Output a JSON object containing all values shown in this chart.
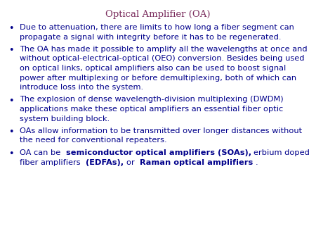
{
  "title": "Optical Amplifier (OA)",
  "title_color": "#7B2D5E",
  "title_fontsize": 9.5,
  "text_color": "#00008B",
  "bg_color": "#FFFFFF",
  "bullet_fontsize": 8.2,
  "bullet_symbol": "•",
  "bullets": [
    {
      "text": "Due to attenuation, there are limits to how long a fiber segment  can propagate a signal with integrity before it has to be regenerated.",
      "parts": null
    },
    {
      "text": "The OA has made it possible to amplify all the wavelengths at once and without optical-electrical-optical (OEO) conversion.  Besides being used on optical links, optical amplifiers also can be used to boost signal power after multiplexing or before demultiplexing, both of which can introduce loss into the system.",
      "parts": null
    },
    {
      "text": "The explosion of dense wavelength-division multiplexing (DWDM) applications make these optical amplifiers an essential fiber optic system building block.",
      "parts": null
    },
    {
      "text": "OAs allow information to be transmitted over longer distances without the need for conventional repeaters.",
      "parts": null
    },
    {
      "text": null,
      "parts": [
        {
          "text": "OA can be ",
          "bold": false
        },
        {
          "text": "semiconductor optical amplifiers (SOAs),",
          "bold": true
        },
        {
          "text": " erbium doped fiber amplifiers ",
          "bold": false
        },
        {
          "text": "(EDFAs),",
          "bold": true
        },
        {
          "text": " or ",
          "bold": false
        },
        {
          "text": "Raman optical amplifiers",
          "bold": true
        },
        {
          "text": ".",
          "bold": false
        }
      ]
    }
  ],
  "fig_width": 4.5,
  "fig_height": 3.38,
  "dpi": 100
}
